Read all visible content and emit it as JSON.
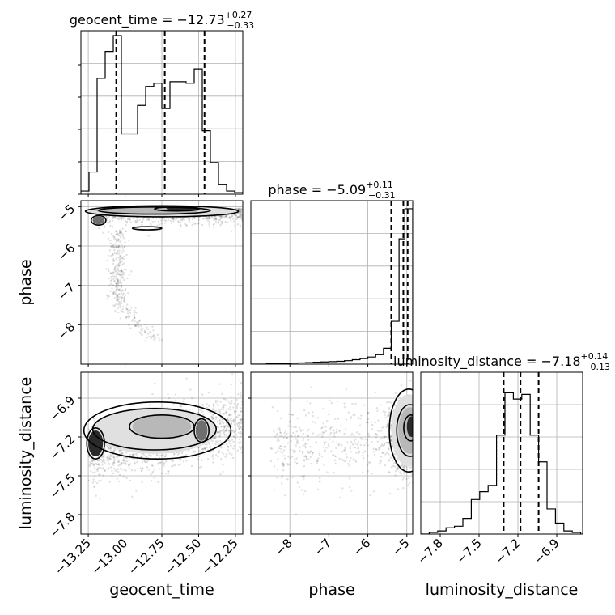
{
  "chart_data": {
    "type": "corner",
    "parameters": [
      {
        "name": "geocent_time",
        "axis_label": "geocent_time",
        "title_prefix": "geocent_time = ",
        "median": "−12.73",
        "plus": "+0.27",
        "minus": "−0.33",
        "range": [
          -13.3,
          -12.2
        ],
        "ticks": [
          -13.25,
          -13.0,
          -12.75,
          -12.5,
          -12.25
        ],
        "tick_labels": [
          "−13.25",
          "−13.00",
          "−12.75",
          "−12.50",
          "−12.25"
        ],
        "quantiles": [
          -13.06,
          -12.73,
          -12.46
        ],
        "histogram": {
          "edges": [
            -13.3,
            -13.245,
            -13.19,
            -13.135,
            -13.08,
            -13.025,
            -12.97,
            -12.915,
            -12.86,
            -12.805,
            -12.75,
            -12.695,
            -12.64,
            -12.585,
            -12.53,
            -12.475,
            -12.42,
            -12.365,
            -12.31,
            -12.255,
            -12.2
          ],
          "counts": [
            0.02,
            0.14,
            0.73,
            0.9,
            1.0,
            0.38,
            0.38,
            0.56,
            0.68,
            0.7,
            0.54,
            0.71,
            0.71,
            0.7,
            0.79,
            0.4,
            0.2,
            0.06,
            0.02,
            0.01
          ]
        }
      },
      {
        "name": "phase",
        "axis_label": "phase",
        "title_prefix": "phase = ",
        "median": "−5.09",
        "plus": "+0.11",
        "minus": "−0.31",
        "range": [
          -9.0,
          -4.85
        ],
        "ticks": [
          -8,
          -7,
          -6,
          -5
        ],
        "tick_labels": [
          "−8",
          "−7",
          "−6",
          "−5"
        ],
        "quantiles": [
          -5.4,
          -5.09,
          -4.98
        ],
        "histogram": {
          "edges": [
            -9.0,
            -8.8,
            -8.6,
            -8.4,
            -8.2,
            -8.0,
            -7.8,
            -7.6,
            -7.4,
            -7.2,
            -7.0,
            -6.8,
            -6.6,
            -6.4,
            -6.2,
            -6.0,
            -5.8,
            -5.6,
            -5.4,
            -5.2,
            -5.05,
            -4.85
          ],
          "counts": [
            0.0,
            0.0,
            0.003,
            0.005,
            0.005,
            0.007,
            0.008,
            0.01,
            0.012,
            0.014,
            0.016,
            0.018,
            0.022,
            0.028,
            0.035,
            0.045,
            0.06,
            0.1,
            0.27,
            0.79,
            0.98
          ]
        }
      },
      {
        "name": "luminosity_distance",
        "axis_label": "luminosity_distance",
        "title_prefix": "luminosity_distance = ",
        "median": "−7.18",
        "plus": "+0.14",
        "minus": "−0.13",
        "range": [
          -7.95,
          -6.7
        ],
        "ticks": [
          -7.8,
          -7.5,
          -7.2,
          -6.9
        ],
        "tick_labels": [
          "−7.8",
          "−7.5",
          "−7.2",
          "−6.9"
        ],
        "quantiles": [
          -7.31,
          -7.18,
          -7.04
        ],
        "histogram": {
          "edges": [
            -7.95,
            -7.885,
            -7.82,
            -7.755,
            -7.69,
            -7.625,
            -7.56,
            -7.495,
            -7.43,
            -7.365,
            -7.3,
            -7.235,
            -7.17,
            -7.105,
            -7.04,
            -6.975,
            -6.91,
            -6.845,
            -6.78,
            -6.715
          ],
          "counts": [
            0.0,
            0.01,
            0.02,
            0.04,
            0.05,
            0.1,
            0.22,
            0.27,
            0.31,
            0.63,
            0.9,
            0.86,
            0.89,
            0.63,
            0.46,
            0.16,
            0.07,
            0.02,
            0.01
          ]
        }
      }
    ],
    "grid": true,
    "contour_levels": 4
  }
}
